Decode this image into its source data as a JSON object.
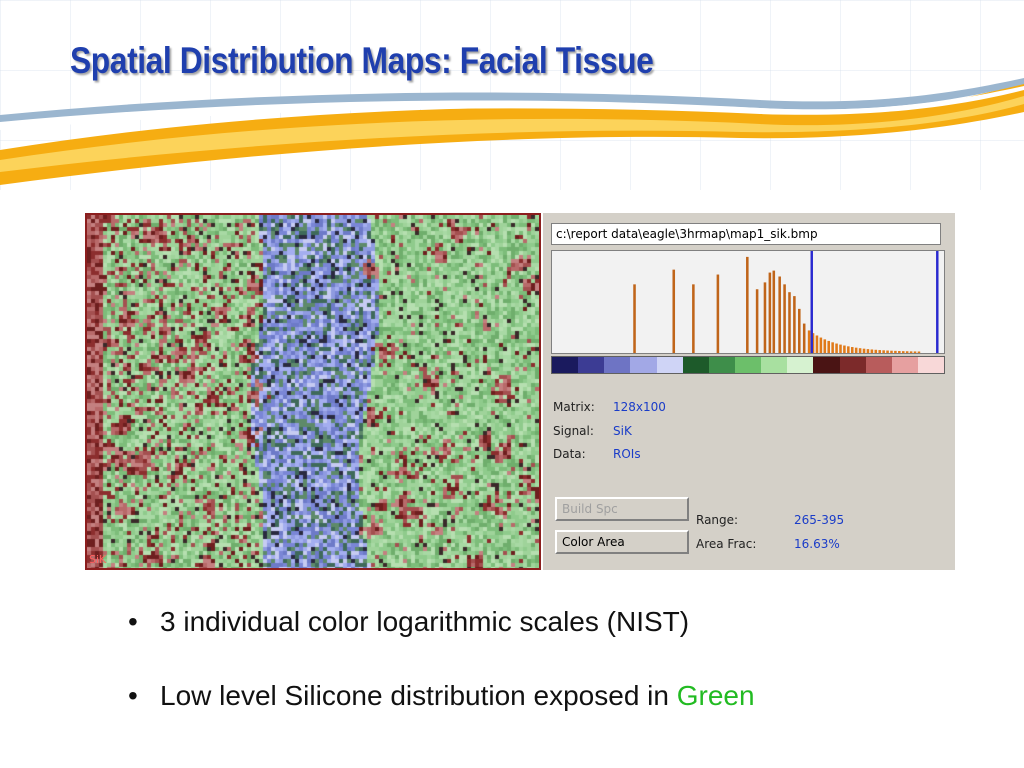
{
  "slide": {
    "title": "Spatial Distribution Maps:  Facial Tissue"
  },
  "map": {
    "corner_label": "SiK",
    "colors": {
      "red_tissue": "#8c2e2e",
      "green_tissue": "#8fce8e",
      "blue_region": "#8f9be0"
    }
  },
  "panel": {
    "file_path": "c:\\report data\\eagle\\3hrmap\\map1_sik.bmp",
    "matrix_label": "Matrix:",
    "matrix_value": "128x100",
    "signal_label": "Signal:",
    "signal_value": "SiK",
    "data_label": "Data:",
    "data_value": "ROIs",
    "build_spc_label": "Build Spc",
    "color_area_label": "Color Area",
    "range_label": "Range:",
    "range_value": "265-395",
    "area_frac_label": "Area Frac:",
    "area_frac_value": "16.63%",
    "colorbar": [
      "#1a1a5e",
      "#3c3c94",
      "#6e74c4",
      "#a2a8e6",
      "#cfd4f6",
      "#1d5a2a",
      "#3e8e4a",
      "#6cbf6a",
      "#a8e0a0",
      "#d6f2d0",
      "#4a1414",
      "#7c2a2a",
      "#b85c5c",
      "#e6a0a0",
      "#f8d8d8"
    ]
  },
  "bullets": {
    "item1": "3 individual color logarithmic scales (NIST)",
    "item2_prefix": "Low level Silicone distribution exposed in ",
    "item2_highlight": "Green",
    "highlight_color": "#22bb22"
  }
}
